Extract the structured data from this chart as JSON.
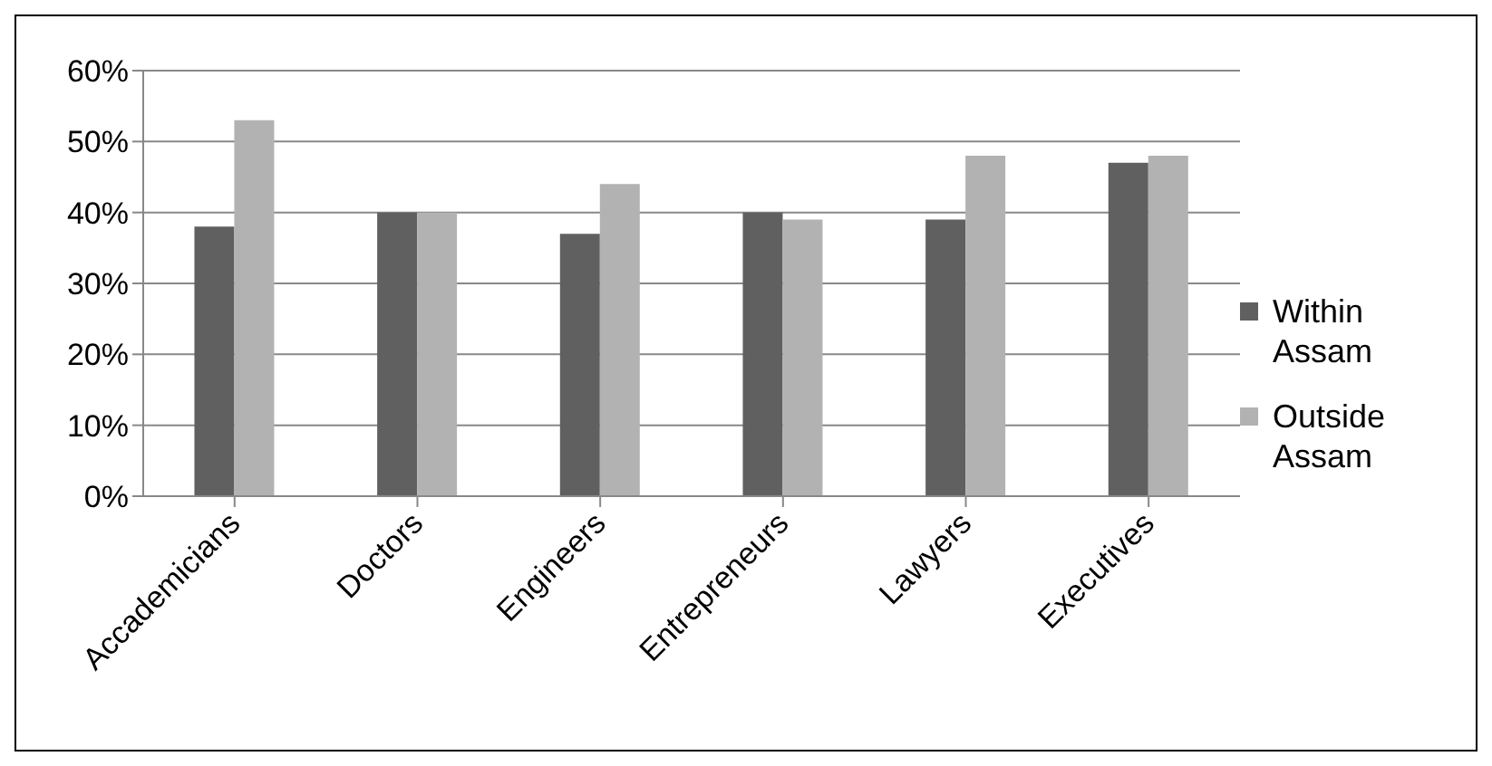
{
  "chart_data": {
    "type": "bar",
    "categories": [
      "Accademicians",
      "Doctors",
      "Engineers",
      "Entrepreneurs",
      "Lawyers",
      "Executives"
    ],
    "series": [
      {
        "name": "Within Assam",
        "color": "#606060",
        "values": [
          38,
          40,
          37,
          40,
          39,
          47
        ]
      },
      {
        "name": "Outside Assam",
        "color": "#b2b2b2",
        "values": [
          53,
          40,
          44,
          39,
          48,
          48
        ]
      }
    ],
    "ylim": [
      0,
      60
    ],
    "yticks": [
      {
        "value": 0,
        "label": "0%"
      },
      {
        "value": 10,
        "label": "10%"
      },
      {
        "value": 20,
        "label": "20%"
      },
      {
        "value": 30,
        "label": "30%"
      },
      {
        "value": 40,
        "label": "40%"
      },
      {
        "value": 50,
        "label": "50%"
      },
      {
        "value": 60,
        "label": "60%"
      }
    ],
    "grid": "y",
    "legend": "right"
  }
}
